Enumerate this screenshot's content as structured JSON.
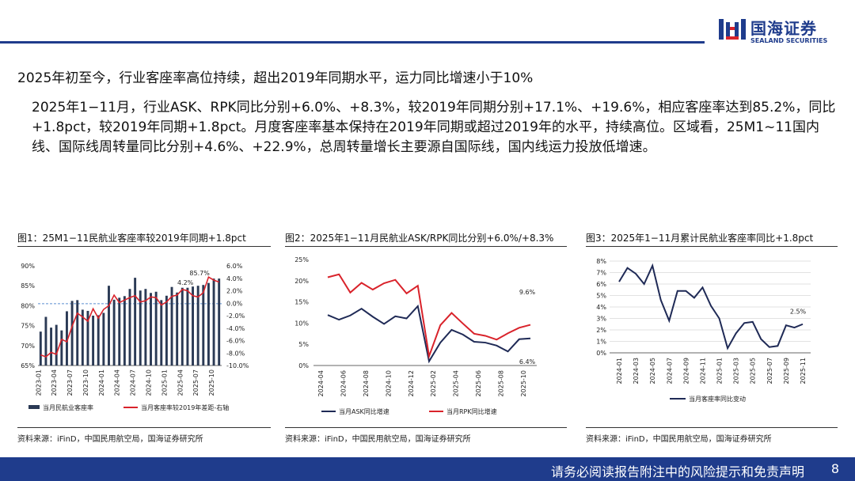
{
  "header": {
    "brand_cn": "国海证券",
    "brand_en": "SEALAND SECURITIES"
  },
  "headline": "2025年初至今，行业客座率高位持续，超出2019年同期水平，运力同比增速小于10%",
  "paragraph": "2025年1−11月，行业ASK、RPK同比分别+6.0%、+8.3%，较2019年同期分别+17.1%、+19.6%，相应客座率达到85.2%，同比+1.8pct，较2019年同期+1.8pct。月度客座率基本保持在2019年同期或超过2019年的水平，持续高位。区域看，25M1~11国内线、国际线周转量同比分别+4.6%、+22.9%，总周转量增长主要源自国际线，国内线运力投放低增速。",
  "footer": {
    "disclaimer": "请务必阅读报告附注中的风险提示和免责声明",
    "page": "8"
  },
  "colors": {
    "navy": "#1f3c8c",
    "bar": "#2b3a55",
    "red": "#d9232b",
    "dark_line": "#1f2a56"
  },
  "chart_data": [
    {
      "type": "bar",
      "title": "图1：25M1−11民航业客座率较2019年同期+1.8pct",
      "source": "资料来源：iFinD，中国民用航空局，国海证券研究所",
      "y_ticks": [
        "90%",
        "85%",
        "80%",
        "75%",
        "70%",
        "65%"
      ],
      "y_right_ticks": [
        "6.0%",
        "4.0%",
        "2.0%",
        "0.0%",
        "-2.0%",
        "-4.0%",
        "-6.0%",
        "-8.0%",
        "-10.0%"
      ],
      "x_ticks": [
        "2023-01",
        "2023-04",
        "2023-07",
        "2023-10",
        "2024-01",
        "2024-04",
        "2024-07",
        "2024-10",
        "2025-01",
        "2025-04",
        "2025-07",
        "2025-10"
      ],
      "ylim": [
        65,
        90
      ],
      "y2lim": [
        -10,
        6
      ],
      "reference_line": 80.5,
      "annotations": [
        "85.7%",
        "4.2%"
      ],
      "series": [
        {
          "name": "当月民航业客座率",
          "values": [
            73.5,
            77.2,
            74.5,
            75.2,
            73.8,
            78.6,
            81.2,
            81.4,
            79.0,
            78.7,
            77.5,
            77.6,
            78.2,
            85.0,
            81.5,
            82.0,
            82.4,
            84.2,
            87.0,
            83.8,
            84.2,
            83.2,
            83.5,
            81.4,
            82.5,
            84.7,
            83.3,
            84.5,
            84.5,
            84.8,
            85.0,
            85.2,
            85.7,
            86.8,
            86.8
          ]
        },
        {
          "name": "当月客座率较2019年差距-右轴",
          "values": [
            -8.3,
            -8.6,
            -7.9,
            -8.2,
            -5.8,
            -6.2,
            -3.7,
            -1.6,
            -2.2,
            -2.9,
            -0.9,
            -2.4,
            -1.0,
            -0.4,
            1.3,
            0.1,
            0.5,
            0.9,
            1.2,
            0.2,
            0.4,
            1.0,
            0.9,
            -0.3,
            0.2,
            1.1,
            1.3,
            2.2,
            2.0,
            1.2,
            1.0,
            1.7,
            4.2,
            3.7,
            3.4
          ]
        }
      ]
    },
    {
      "type": "line",
      "title": "图2：2025年1−11月民航业ASK/RPK同比分别+6.0%/+8.3%",
      "source": "资料来源：iFinD，中国民用航空局，国海证券研究所",
      "y_ticks": [
        "25%",
        "20%",
        "15%",
        "10%",
        "5%",
        "0%"
      ],
      "x_ticks": [
        "2024-04",
        "2024-06",
        "2024-08",
        "2024-10",
        "2024-12",
        "2025-02",
        "2025-04",
        "2025-06",
        "2025-08",
        "2025-10"
      ],
      "ylim": [
        0,
        25
      ],
      "annotations": [
        "9.6%",
        "6.4%"
      ],
      "series": [
        {
          "name": "当月ASK同比增速",
          "values": [
            11.9,
            10.8,
            11.8,
            13.4,
            11.5,
            9.8,
            11.6,
            11.1,
            14.0,
            1.0,
            5.4,
            8.4,
            7.3,
            5.6,
            5.4,
            4.7,
            3.3,
            6.2,
            6.4
          ]
        },
        {
          "name": "当月RPK同比增速",
          "values": [
            20.8,
            21.5,
            17.2,
            19.5,
            17.9,
            19.4,
            20.2,
            17.0,
            18.8,
            2.2,
            9.5,
            12.4,
            9.9,
            7.5,
            7.0,
            6.1,
            7.6,
            8.9,
            9.6
          ]
        }
      ]
    },
    {
      "type": "line",
      "title": "图3：2025年1−11月累计民航业客座率同比+1.8pct",
      "source": "资料来源：iFinD，中国民用航空局，国海证券研究所",
      "y_ticks": [
        "8%",
        "7%",
        "6%",
        "5%",
        "4%",
        "3%",
        "2%",
        "1%",
        "0%"
      ],
      "x_ticks": [
        "2024-01",
        "2024-03",
        "2024-05",
        "2024-07",
        "2024-09",
        "2024-11",
        "2025-01",
        "2025-03",
        "2025-05",
        "2025-07",
        "2025-09",
        "2025-11"
      ],
      "ylim": [
        0,
        8
      ],
      "annotations": [
        "2.5%"
      ],
      "series": [
        {
          "name": "当月客座率同比变动",
          "values": [
            6.2,
            7.4,
            6.9,
            6.0,
            7.6,
            4.6,
            2.8,
            5.4,
            5.4,
            4.8,
            5.7,
            4.1,
            3.0,
            0.4,
            1.7,
            2.6,
            2.7,
            1.2,
            0.5,
            0.6,
            2.4,
            2.2,
            2.5
          ]
        }
      ]
    }
  ]
}
